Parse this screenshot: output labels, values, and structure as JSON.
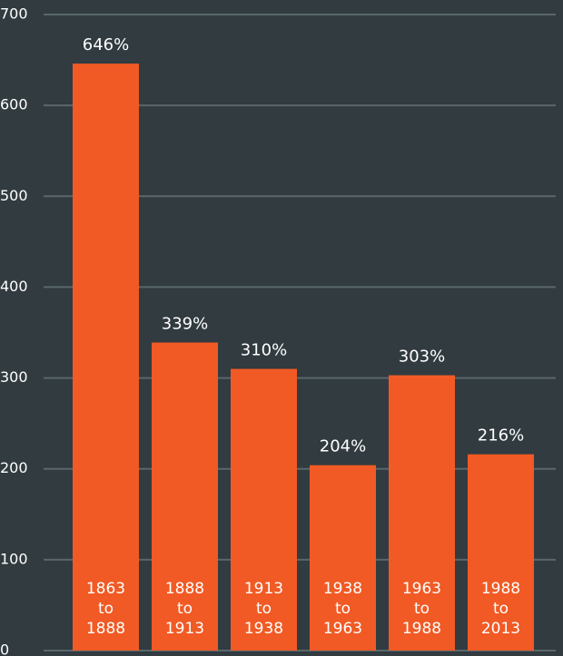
{
  "chart_data": {
    "type": "bar",
    "categories": [
      "1863\nto\n1888",
      "1888\nto\n1913",
      "1913\nto\n1938",
      "1938\nto\n1963",
      "1963\nto\n1988",
      "1988\nto\n2013"
    ],
    "values": [
      646,
      339,
      310,
      204,
      303,
      216
    ],
    "value_labels": [
      "646%",
      "339%",
      "310%",
      "204%",
      "303%",
      "216%"
    ],
    "color": "#f15a24",
    "ylim": [
      0,
      700
    ],
    "yticks": [
      0,
      100,
      200,
      300,
      400,
      500,
      600,
      700
    ],
    "grid": true
  }
}
